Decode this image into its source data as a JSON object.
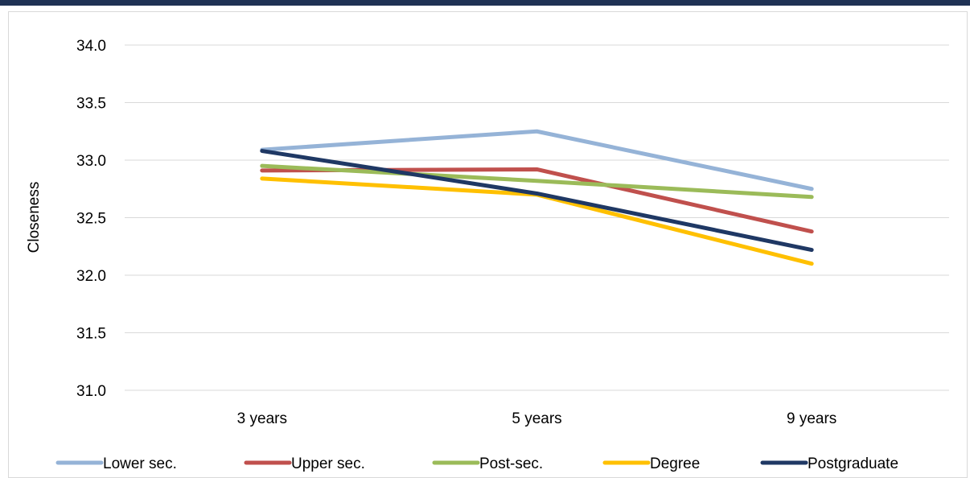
{
  "chart_data": {
    "type": "line",
    "title": "",
    "xlabel": "",
    "ylabel": "Closeness",
    "categories": [
      "3 years",
      "5 years",
      "9 years"
    ],
    "ylim": [
      31.0,
      34.0
    ],
    "yticks": [
      "31.0",
      "31.5",
      "32.0",
      "32.5",
      "33.0",
      "33.5",
      "34.0"
    ],
    "grid": true,
    "legend_position": "bottom",
    "series": [
      {
        "name": "Lower sec.",
        "color": "#95B3D7",
        "values": [
          33.09,
          33.25,
          32.75
        ]
      },
      {
        "name": "Upper sec.",
        "color": "#C0504D",
        "values": [
          32.91,
          32.92,
          32.38
        ]
      },
      {
        "name": "Post-sec.",
        "color": "#9BBB59",
        "values": [
          32.95,
          32.82,
          32.68
        ]
      },
      {
        "name": "Degree",
        "color": "#FFC000",
        "values": [
          32.84,
          32.7,
          32.1
        ]
      },
      {
        "name": "Postgraduate",
        "color": "#1F3864",
        "values": [
          33.08,
          32.71,
          32.22
        ]
      }
    ]
  }
}
